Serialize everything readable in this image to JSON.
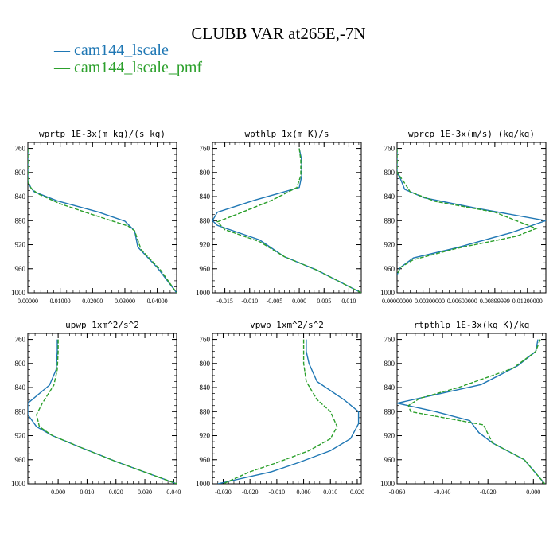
{
  "title": "CLUBB VAR at265E,-7N",
  "legend": [
    {
      "label": "cam144_lscale",
      "color": "#1f77b4",
      "style": "solid"
    },
    {
      "label": "cam144_lscale_pmf",
      "color": "#2ca02c",
      "style": "dashed"
    }
  ],
  "colors": {
    "series_0": "#1f77b4",
    "series_1": "#2ca02c",
    "axis": "#000000"
  },
  "chart_data": [
    {
      "type": "line",
      "title": "wprtp  1E-3x(m kg)/(s kg)",
      "xlim": [
        0.0,
        0.046
      ],
      "ylim": [
        1000,
        750
      ],
      "yticks": [
        760,
        800,
        840,
        880,
        920,
        960,
        1000
      ],
      "xticks": [
        0.0,
        0.01,
        0.02,
        0.03,
        0.04
      ],
      "xtick_labels": [
        "0.00000",
        "0.01000",
        "0.02000",
        "0.03000",
        "0.04000"
      ],
      "series": [
        {
          "name": "cam144_lscale",
          "x": [
            0.0,
            0.0,
            0.0,
            0.0,
            0.001,
            0.002,
            0.009,
            0.022,
            0.03,
            0.033,
            0.034,
            0.04,
            0.046
          ],
          "y": [
            760,
            780,
            800,
            815,
            826,
            832,
            847,
            866,
            881,
            897,
            924,
            958,
            1000
          ]
        },
        {
          "name": "cam144_lscale_pmf",
          "x": [
            0.0,
            0.0,
            0.0,
            0.0,
            0.001,
            0.003,
            0.01,
            0.02,
            0.031,
            0.033,
            0.035,
            0.041,
            0.046
          ],
          "y": [
            760,
            780,
            800,
            815,
            826,
            835,
            852,
            870,
            889,
            897,
            928,
            962,
            1000
          ]
        }
      ]
    },
    {
      "type": "line",
      "title": "wpthlp  1x(m K)/s",
      "xlim": [
        -0.0175,
        0.0125
      ],
      "ylim": [
        1000,
        750
      ],
      "yticks": [
        760,
        800,
        840,
        880,
        920,
        960,
        1000
      ],
      "xticks": [
        -0.015,
        -0.01,
        -0.005,
        0.0,
        0.005,
        0.01
      ],
      "xtick_labels": [
        "-0.015",
        "-0.010",
        "-0.005",
        "0.000",
        "0.005",
        "0.010"
      ],
      "series": [
        {
          "name": "cam144_lscale",
          "x": [
            0.0,
            0.0005,
            0.0005,
            0.0,
            -0.009,
            -0.0165,
            -0.0175,
            -0.0165,
            -0.008,
            -0.003,
            0.0035,
            0.0125
          ],
          "y": [
            760,
            780,
            805,
            825,
            846,
            866,
            880,
            888,
            912,
            940,
            962,
            1000
          ]
        },
        {
          "name": "cam144_lscale_pmf",
          "x": [
            0.0,
            0.0003,
            0.0003,
            -0.0005,
            -0.0055,
            -0.0115,
            -0.0165,
            -0.015,
            -0.008,
            -0.003,
            0.0035,
            0.0125
          ],
          "y": [
            760,
            780,
            805,
            825,
            846,
            866,
            882,
            895,
            915,
            940,
            962,
            1000
          ]
        }
      ]
    },
    {
      "type": "line",
      "title": "wprcp  1E-3x(m/s) (kg/kg)",
      "xlim": [
        0.0,
        0.0137
      ],
      "ylim": [
        1000,
        750
      ],
      "yticks": [
        760,
        800,
        840,
        880,
        920,
        960,
        1000
      ],
      "xticks": [
        0.0,
        0.003,
        0.006,
        0.009,
        0.012
      ],
      "xtick_labels": [
        "0.00000000",
        "0.00300000",
        "0.00600000",
        "0.00899999",
        "0.01200000"
      ],
      "series": [
        {
          "name": "cam144_lscale",
          "x": [
            0.0,
            0.0,
            0.0,
            0.0003,
            0.0007,
            0.0025,
            0.0075,
            0.0137,
            0.0105,
            0.0055,
            0.0015,
            0.0003,
            0.0
          ],
          "y": [
            760,
            780,
            800,
            810,
            828,
            842,
            860,
            880,
            900,
            925,
            942,
            958,
            970
          ]
        },
        {
          "name": "cam144_lscale_pmf",
          "x": [
            0.0,
            0.0,
            0.0,
            0.0005,
            0.0012,
            0.0035,
            0.009,
            0.0128,
            0.011,
            0.0055,
            0.0015,
            0.0003,
            0.0
          ],
          "y": [
            760,
            780,
            800,
            812,
            832,
            848,
            866,
            893,
            906,
            926,
            945,
            958,
            970
          ]
        }
      ]
    },
    {
      "type": "line",
      "title": "upwp  1xm^2/s^2",
      "xlim": [
        -0.0105,
        0.041
      ],
      "ylim": [
        1000,
        750
      ],
      "yticks": [
        760,
        800,
        840,
        880,
        920,
        960,
        1000
      ],
      "xticks": [
        0.0,
        0.01,
        0.02,
        0.03,
        0.04
      ],
      "xtick_labels": [
        "0.000",
        "0.010",
        "0.020",
        "0.030",
        "0.040"
      ],
      "series": [
        {
          "name": "cam144_lscale",
          "x": [
            -0.0003,
            -0.0003,
            -0.0007,
            -0.003,
            -0.0105,
            -0.0105,
            -0.0075,
            -0.002,
            0.008,
            0.02,
            0.041
          ],
          "y": [
            760,
            780,
            810,
            836,
            866,
            885,
            905,
            920,
            940,
            963,
            1000
          ]
        },
        {
          "name": "cam144_lscale_pmf",
          "x": [
            0.0,
            0.0,
            -0.0003,
            -0.0015,
            -0.0055,
            -0.0075,
            -0.0065,
            -0.002,
            0.008,
            0.02,
            0.041
          ],
          "y": [
            760,
            780,
            810,
            836,
            866,
            885,
            905,
            920,
            940,
            963,
            1000
          ]
        }
      ]
    },
    {
      "type": "line",
      "title": "vpwp  1xm^2/s^2",
      "xlim": [
        -0.034,
        0.0215
      ],
      "ylim": [
        1000,
        750
      ],
      "yticks": [
        760,
        800,
        840,
        880,
        920,
        960,
        1000
      ],
      "xticks": [
        -0.03,
        -0.02,
        -0.01,
        0.0,
        0.01,
        0.02
      ],
      "xtick_labels": [
        "-0.030",
        "-0.020",
        "-0.010",
        "0.000",
        "0.010",
        "0.020"
      ],
      "series": [
        {
          "name": "cam144_lscale",
          "x": [
            0.001,
            0.001,
            0.002,
            0.005,
            0.015,
            0.0205,
            0.0205,
            0.0175,
            0.01,
            -0.002,
            -0.012,
            -0.032
          ],
          "y": [
            760,
            780,
            800,
            830,
            860,
            880,
            900,
            925,
            945,
            965,
            980,
            1000
          ]
        },
        {
          "name": "cam144_lscale_pmf",
          "x": [
            0.0,
            0.0,
            0.0,
            0.001,
            0.005,
            0.01,
            0.0125,
            0.01,
            0.002,
            -0.01,
            -0.02,
            -0.03
          ],
          "y": [
            760,
            780,
            800,
            830,
            860,
            880,
            905,
            925,
            945,
            965,
            980,
            1000
          ]
        }
      ]
    },
    {
      "type": "line",
      "title": "rtpthlp  1E-3x(kg K)/kg",
      "xlim": [
        -0.06,
        0.0055
      ],
      "ylim": [
        1000,
        750
      ],
      "yticks": [
        760,
        800,
        840,
        880,
        920,
        960,
        1000
      ],
      "xticks": [
        -0.06,
        -0.04,
        -0.02,
        0.0
      ],
      "xtick_labels": [
        "-0.060",
        "-0.040",
        "-0.020",
        "0.000"
      ],
      "series": [
        {
          "name": "cam144_lscale",
          "x": [
            0.002,
            0.001,
            -0.007,
            -0.023,
            -0.06,
            -0.043,
            -0.028,
            -0.024,
            -0.018,
            -0.004,
            0.005
          ],
          "y": [
            760,
            780,
            804,
            835,
            866,
            880,
            895,
            915,
            932,
            960,
            1000
          ]
        },
        {
          "name": "cam144_lscale_pmf",
          "x": [
            0.003,
            0.001,
            -0.009,
            -0.033,
            -0.05,
            -0.055,
            -0.054,
            -0.022,
            -0.018,
            -0.004,
            0.005
          ],
          "y": [
            760,
            780,
            808,
            840,
            858,
            870,
            880,
            902,
            932,
            960,
            1000
          ]
        }
      ]
    }
  ]
}
